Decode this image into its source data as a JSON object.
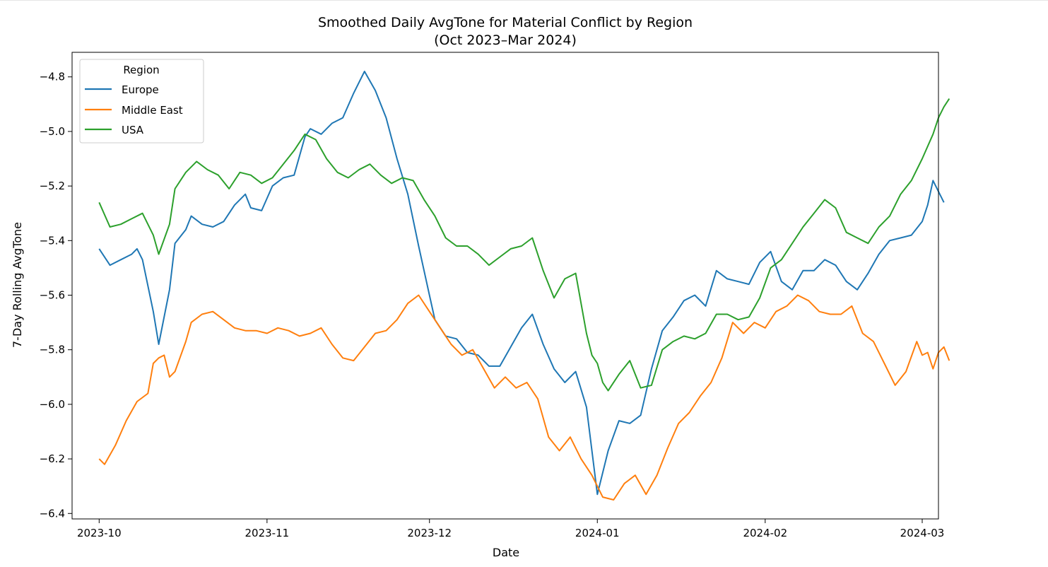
{
  "chart_data": {
    "type": "line",
    "title": "Smoothed Daily AvgTone for Material Conflict by Region",
    "subtitle": "(Oct 2023–Mar 2024)",
    "xlabel": "Date",
    "ylabel": "7-Day Rolling AvgTone",
    "x_ticks": [
      "2023-10",
      "2023-11",
      "2023-12",
      "2024-01",
      "2024-02",
      "2024-03"
    ],
    "y_ticks": [
      "−6.4",
      "−6.2",
      "−6.0",
      "−5.8",
      "−5.6",
      "−5.4",
      "−5.2",
      "−5.0",
      "−4.8"
    ],
    "ylim": [
      -6.42,
      -4.71
    ],
    "xlim": [
      "2023-09-26",
      "2024-03-04"
    ],
    "grid": false,
    "legend": {
      "title": "Region",
      "placement": "top-left"
    },
    "series": [
      {
        "name": "Europe",
        "color": "#1f77b4",
        "points": [
          [
            "2023-10-01",
            -5.43
          ],
          [
            "2023-10-03",
            -5.49
          ],
          [
            "2023-10-05",
            -5.47
          ],
          [
            "2023-10-07",
            -5.45
          ],
          [
            "2023-10-08",
            -5.43
          ],
          [
            "2023-10-09",
            -5.47
          ],
          [
            "2023-10-11",
            -5.66
          ],
          [
            "2023-10-12",
            -5.78
          ],
          [
            "2023-10-14",
            -5.58
          ],
          [
            "2023-10-15",
            -5.41
          ],
          [
            "2023-10-17",
            -5.36
          ],
          [
            "2023-10-18",
            -5.31
          ],
          [
            "2023-10-20",
            -5.34
          ],
          [
            "2023-10-22",
            -5.35
          ],
          [
            "2023-10-24",
            -5.33
          ],
          [
            "2023-10-26",
            -5.27
          ],
          [
            "2023-10-28",
            -5.23
          ],
          [
            "2023-10-29",
            -5.28
          ],
          [
            "2023-10-31",
            -5.29
          ],
          [
            "2023-11-02",
            -5.2
          ],
          [
            "2023-11-04",
            -5.17
          ],
          [
            "2023-11-06",
            -5.16
          ],
          [
            "2023-11-08",
            -5.02
          ],
          [
            "2023-11-09",
            -4.99
          ],
          [
            "2023-11-11",
            -5.01
          ],
          [
            "2023-11-13",
            -4.97
          ],
          [
            "2023-11-15",
            -4.95
          ],
          [
            "2023-11-17",
            -4.86
          ],
          [
            "2023-11-19",
            -4.78
          ],
          [
            "2023-11-21",
            -4.85
          ],
          [
            "2023-11-23",
            -4.95
          ],
          [
            "2023-11-25",
            -5.1
          ],
          [
            "2023-11-27",
            -5.23
          ],
          [
            "2023-11-29",
            -5.42
          ],
          [
            "2023-12-01",
            -5.6
          ],
          [
            "2023-12-02",
            -5.69
          ],
          [
            "2023-12-04",
            -5.75
          ],
          [
            "2023-12-06",
            -5.76
          ],
          [
            "2023-12-08",
            -5.81
          ],
          [
            "2023-12-10",
            -5.82
          ],
          [
            "2023-12-12",
            -5.86
          ],
          [
            "2023-12-14",
            -5.86
          ],
          [
            "2023-12-16",
            -5.79
          ],
          [
            "2023-12-18",
            -5.72
          ],
          [
            "2023-12-20",
            -5.67
          ],
          [
            "2023-12-22",
            -5.78
          ],
          [
            "2023-12-24",
            -5.87
          ],
          [
            "2023-12-26",
            -5.92
          ],
          [
            "2023-12-28",
            -5.88
          ],
          [
            "2023-12-30",
            -6.01
          ],
          [
            "2024-01-01",
            -6.33
          ],
          [
            "2024-01-03",
            -6.17
          ],
          [
            "2024-01-05",
            -6.06
          ],
          [
            "2024-01-07",
            -6.07
          ],
          [
            "2024-01-09",
            -6.04
          ],
          [
            "2024-01-11",
            -5.87
          ],
          [
            "2024-01-13",
            -5.73
          ],
          [
            "2024-01-15",
            -5.68
          ],
          [
            "2024-01-17",
            -5.62
          ],
          [
            "2024-01-19",
            -5.6
          ],
          [
            "2024-01-21",
            -5.64
          ],
          [
            "2024-01-23",
            -5.51
          ],
          [
            "2024-01-25",
            -5.54
          ],
          [
            "2024-01-27",
            -5.55
          ],
          [
            "2024-01-29",
            -5.56
          ],
          [
            "2024-01-31",
            -5.48
          ],
          [
            "2024-02-02",
            -5.44
          ],
          [
            "2024-02-04",
            -5.55
          ],
          [
            "2024-02-06",
            -5.58
          ],
          [
            "2024-02-08",
            -5.51
          ],
          [
            "2024-02-10",
            -5.51
          ],
          [
            "2024-02-12",
            -5.47
          ],
          [
            "2024-02-14",
            -5.49
          ],
          [
            "2024-02-16",
            -5.55
          ],
          [
            "2024-02-18",
            -5.58
          ],
          [
            "2024-02-20",
            -5.52
          ],
          [
            "2024-02-22",
            -5.45
          ],
          [
            "2024-02-24",
            -5.4
          ],
          [
            "2024-02-26",
            -5.39
          ],
          [
            "2024-02-28",
            -5.38
          ],
          [
            "2024-03-01",
            -5.33
          ],
          [
            "2024-03-02",
            -5.27
          ],
          [
            "2024-03-03",
            -5.18
          ],
          [
            "2024-03-05",
            -5.26
          ]
        ]
      },
      {
        "name": "Middle East",
        "color": "#ff7f0e",
        "points": [
          [
            "2023-10-01",
            -6.2
          ],
          [
            "2023-10-02",
            -6.22
          ],
          [
            "2023-10-04",
            -6.15
          ],
          [
            "2023-10-06",
            -6.06
          ],
          [
            "2023-10-08",
            -5.99
          ],
          [
            "2023-10-10",
            -5.96
          ],
          [
            "2023-10-11",
            -5.85
          ],
          [
            "2023-10-12",
            -5.83
          ],
          [
            "2023-10-13",
            -5.82
          ],
          [
            "2023-10-14",
            -5.9
          ],
          [
            "2023-10-15",
            -5.88
          ],
          [
            "2023-10-17",
            -5.77
          ],
          [
            "2023-10-18",
            -5.7
          ],
          [
            "2023-10-20",
            -5.67
          ],
          [
            "2023-10-22",
            -5.66
          ],
          [
            "2023-10-24",
            -5.69
          ],
          [
            "2023-10-26",
            -5.72
          ],
          [
            "2023-10-28",
            -5.73
          ],
          [
            "2023-10-30",
            -5.73
          ],
          [
            "2023-11-01",
            -5.74
          ],
          [
            "2023-11-03",
            -5.72
          ],
          [
            "2023-11-05",
            -5.73
          ],
          [
            "2023-11-07",
            -5.75
          ],
          [
            "2023-11-09",
            -5.74
          ],
          [
            "2023-11-11",
            -5.72
          ],
          [
            "2023-11-13",
            -5.78
          ],
          [
            "2023-11-15",
            -5.83
          ],
          [
            "2023-11-17",
            -5.84
          ],
          [
            "2023-11-19",
            -5.79
          ],
          [
            "2023-11-21",
            -5.74
          ],
          [
            "2023-11-23",
            -5.73
          ],
          [
            "2023-11-25",
            -5.69
          ],
          [
            "2023-11-27",
            -5.63
          ],
          [
            "2023-11-29",
            -5.6
          ],
          [
            "2023-12-01",
            -5.66
          ],
          [
            "2023-12-03",
            -5.72
          ],
          [
            "2023-12-05",
            -5.78
          ],
          [
            "2023-12-07",
            -5.82
          ],
          [
            "2023-12-09",
            -5.8
          ],
          [
            "2023-12-11",
            -5.87
          ],
          [
            "2023-12-13",
            -5.94
          ],
          [
            "2023-12-15",
            -5.9
          ],
          [
            "2023-12-17",
            -5.94
          ],
          [
            "2023-12-19",
            -5.92
          ],
          [
            "2023-12-21",
            -5.98
          ],
          [
            "2023-12-23",
            -6.12
          ],
          [
            "2023-12-25",
            -6.17
          ],
          [
            "2023-12-27",
            -6.12
          ],
          [
            "2023-12-29",
            -6.2
          ],
          [
            "2023-12-31",
            -6.26
          ],
          [
            "2024-01-02",
            -6.34
          ],
          [
            "2024-01-04",
            -6.35
          ],
          [
            "2024-01-06",
            -6.29
          ],
          [
            "2024-01-08",
            -6.26
          ],
          [
            "2024-01-10",
            -6.33
          ],
          [
            "2024-01-12",
            -6.26
          ],
          [
            "2024-01-14",
            -6.16
          ],
          [
            "2024-01-16",
            -6.07
          ],
          [
            "2024-01-18",
            -6.03
          ],
          [
            "2024-01-20",
            -5.97
          ],
          [
            "2024-01-22",
            -5.92
          ],
          [
            "2024-01-24",
            -5.83
          ],
          [
            "2024-01-26",
            -5.7
          ],
          [
            "2024-01-28",
            -5.74
          ],
          [
            "2024-01-30",
            -5.7
          ],
          [
            "2024-02-01",
            -5.72
          ],
          [
            "2024-02-03",
            -5.66
          ],
          [
            "2024-02-05",
            -5.64
          ],
          [
            "2024-02-07",
            -5.6
          ],
          [
            "2024-02-09",
            -5.62
          ],
          [
            "2024-02-11",
            -5.66
          ],
          [
            "2024-02-13",
            -5.67
          ],
          [
            "2024-02-15",
            -5.67
          ],
          [
            "2024-02-17",
            -5.64
          ],
          [
            "2024-02-19",
            -5.74
          ],
          [
            "2024-02-21",
            -5.77
          ],
          [
            "2024-02-23",
            -5.85
          ],
          [
            "2024-02-25",
            -5.93
          ],
          [
            "2024-02-27",
            -5.88
          ],
          [
            "2024-02-29",
            -5.77
          ],
          [
            "2024-03-01",
            -5.82
          ],
          [
            "2024-03-02",
            -5.81
          ],
          [
            "2024-03-03",
            -5.87
          ],
          [
            "2024-03-04",
            -5.81
          ],
          [
            "2024-03-05",
            -5.79
          ],
          [
            "2024-03-06",
            -5.84
          ]
        ]
      },
      {
        "name": "USA",
        "color": "#2ca02c",
        "points": [
          [
            "2023-10-01",
            -5.26
          ],
          [
            "2023-10-03",
            -5.35
          ],
          [
            "2023-10-05",
            -5.34
          ],
          [
            "2023-10-07",
            -5.32
          ],
          [
            "2023-10-09",
            -5.3
          ],
          [
            "2023-10-11",
            -5.38
          ],
          [
            "2023-10-12",
            -5.45
          ],
          [
            "2023-10-14",
            -5.34
          ],
          [
            "2023-10-15",
            -5.21
          ],
          [
            "2023-10-17",
            -5.15
          ],
          [
            "2023-10-19",
            -5.11
          ],
          [
            "2023-10-21",
            -5.14
          ],
          [
            "2023-10-23",
            -5.16
          ],
          [
            "2023-10-25",
            -5.21
          ],
          [
            "2023-10-27",
            -5.15
          ],
          [
            "2023-10-29",
            -5.16
          ],
          [
            "2023-10-31",
            -5.19
          ],
          [
            "2023-11-02",
            -5.17
          ],
          [
            "2023-11-04",
            -5.12
          ],
          [
            "2023-11-06",
            -5.07
          ],
          [
            "2023-11-08",
            -5.01
          ],
          [
            "2023-11-10",
            -5.03
          ],
          [
            "2023-11-12",
            -5.1
          ],
          [
            "2023-11-14",
            -5.15
          ],
          [
            "2023-11-16",
            -5.17
          ],
          [
            "2023-11-18",
            -5.14
          ],
          [
            "2023-11-20",
            -5.12
          ],
          [
            "2023-11-22",
            -5.16
          ],
          [
            "2023-11-24",
            -5.19
          ],
          [
            "2023-11-26",
            -5.17
          ],
          [
            "2023-11-28",
            -5.18
          ],
          [
            "2023-11-30",
            -5.25
          ],
          [
            "2023-12-02",
            -5.31
          ],
          [
            "2023-12-04",
            -5.39
          ],
          [
            "2023-12-06",
            -5.42
          ],
          [
            "2023-12-08",
            -5.42
          ],
          [
            "2023-12-10",
            -5.45
          ],
          [
            "2023-12-12",
            -5.49
          ],
          [
            "2023-12-14",
            -5.46
          ],
          [
            "2023-12-16",
            -5.43
          ],
          [
            "2023-12-18",
            -5.42
          ],
          [
            "2023-12-20",
            -5.39
          ],
          [
            "2023-12-22",
            -5.51
          ],
          [
            "2023-12-24",
            -5.61
          ],
          [
            "2023-12-26",
            -5.54
          ],
          [
            "2023-12-28",
            -5.52
          ],
          [
            "2023-12-30",
            -5.74
          ],
          [
            "2023-12-31",
            -5.82
          ],
          [
            "2024-01-01",
            -5.85
          ],
          [
            "2024-01-02",
            -5.92
          ],
          [
            "2024-01-03",
            -5.95
          ],
          [
            "2024-01-05",
            -5.89
          ],
          [
            "2024-01-07",
            -5.84
          ],
          [
            "2024-01-09",
            -5.94
          ],
          [
            "2024-01-11",
            -5.93
          ],
          [
            "2024-01-13",
            -5.8
          ],
          [
            "2024-01-15",
            -5.77
          ],
          [
            "2024-01-17",
            -5.75
          ],
          [
            "2024-01-19",
            -5.76
          ],
          [
            "2024-01-21",
            -5.74
          ],
          [
            "2024-01-23",
            -5.67
          ],
          [
            "2024-01-25",
            -5.67
          ],
          [
            "2024-01-27",
            -5.69
          ],
          [
            "2024-01-29",
            -5.68
          ],
          [
            "2024-01-31",
            -5.61
          ],
          [
            "2024-02-02",
            -5.5
          ],
          [
            "2024-02-04",
            -5.47
          ],
          [
            "2024-02-06",
            -5.41
          ],
          [
            "2024-02-08",
            -5.35
          ],
          [
            "2024-02-10",
            -5.3
          ],
          [
            "2024-02-12",
            -5.25
          ],
          [
            "2024-02-14",
            -5.28
          ],
          [
            "2024-02-16",
            -5.37
          ],
          [
            "2024-02-18",
            -5.39
          ],
          [
            "2024-02-20",
            -5.41
          ],
          [
            "2024-02-22",
            -5.35
          ],
          [
            "2024-02-24",
            -5.31
          ],
          [
            "2024-02-26",
            -5.23
          ],
          [
            "2024-02-28",
            -5.18
          ],
          [
            "2024-03-01",
            -5.1
          ],
          [
            "2024-03-03",
            -5.01
          ],
          [
            "2024-03-04",
            -4.95
          ],
          [
            "2024-03-05",
            -4.91
          ],
          [
            "2024-03-06",
            -4.88
          ]
        ]
      }
    ]
  }
}
